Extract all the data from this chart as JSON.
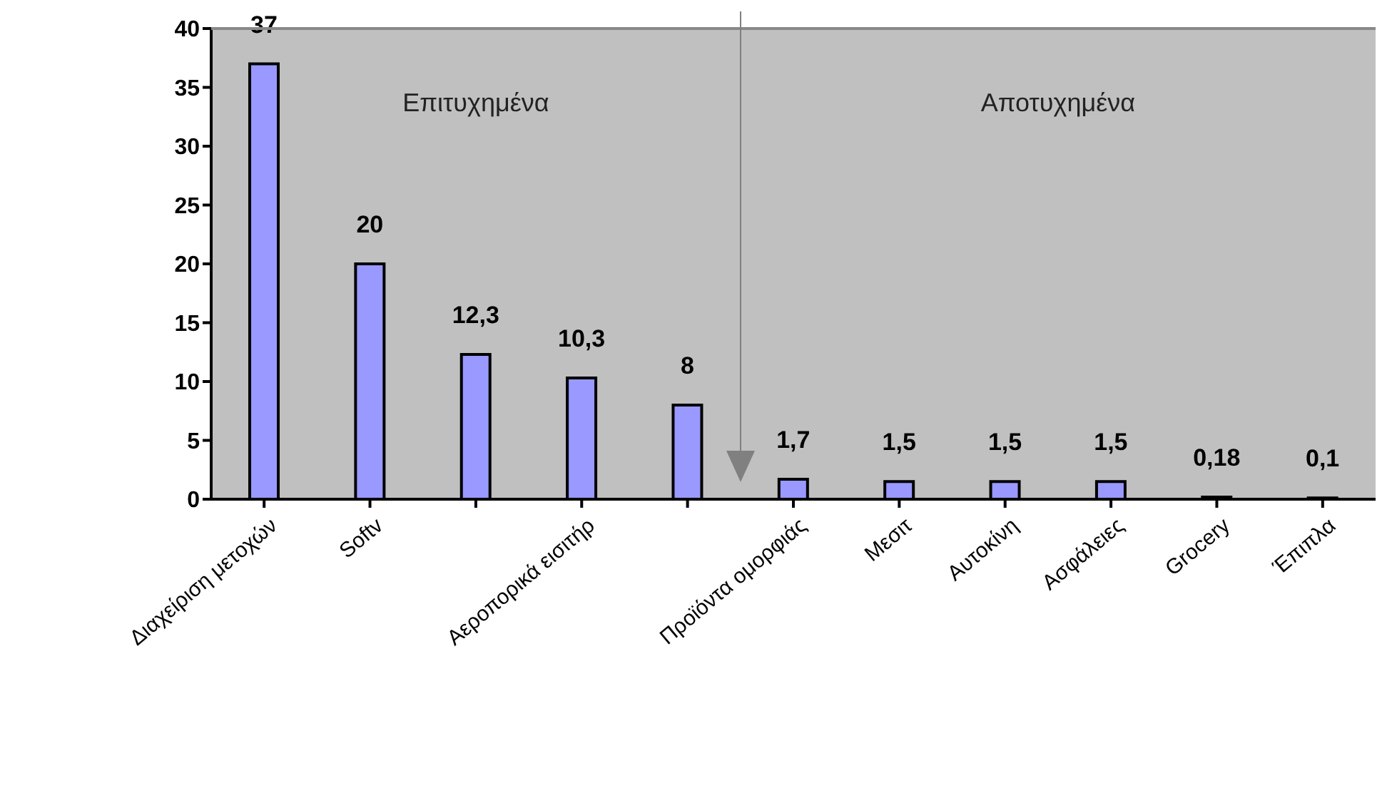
{
  "chart_data": {
    "type": "bar",
    "categories": [
      "Διαχείριση μετοχών",
      "Softv",
      null,
      "Αεροπορικά εισιτήρ",
      null,
      "Προϊόντα ομορφιάς",
      "Μεσιτ",
      "Αυτοκίνη",
      "Ασφάλειες",
      "Grocery",
      "Έπιπλα"
    ],
    "values": [
      37,
      20,
      12.3,
      10.3,
      8,
      1.7,
      1.5,
      1.5,
      1.5,
      0.18,
      0.1
    ],
    "value_labels": [
      "37",
      "20",
      "12,3",
      "10,3",
      "8",
      "1,7",
      "1,5",
      "1,5",
      "1,5",
      "0,18",
      "0,1"
    ],
    "color": "#9999ff",
    "ylim": [
      0,
      40
    ],
    "yticks": [
      0,
      5,
      10,
      15,
      20,
      25,
      30,
      35,
      40
    ],
    "grid": false,
    "annotations": [
      "Επιτυχημένα",
      "Αποτυχημένα"
    ]
  }
}
